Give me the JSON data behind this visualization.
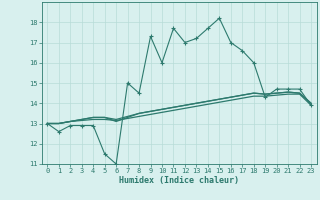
{
  "xlabel": "Humidex (Indice chaleur)",
  "x": [
    0,
    1,
    2,
    3,
    4,
    5,
    6,
    7,
    8,
    9,
    10,
    11,
    12,
    13,
    14,
    15,
    16,
    17,
    18,
    19,
    20,
    21,
    22,
    23
  ],
  "line1": [
    13.0,
    12.6,
    12.9,
    12.9,
    12.9,
    11.5,
    11.0,
    15.0,
    14.5,
    17.3,
    16.0,
    17.7,
    17.0,
    17.2,
    17.7,
    18.2,
    17.0,
    16.6,
    16.0,
    14.3,
    14.7,
    14.7,
    14.7,
    13.9
  ],
  "line2": [
    13.0,
    13.0,
    13.1,
    13.15,
    13.2,
    13.2,
    13.15,
    13.25,
    13.35,
    13.45,
    13.55,
    13.65,
    13.75,
    13.85,
    13.95,
    14.05,
    14.15,
    14.25,
    14.35,
    14.35,
    14.4,
    14.45,
    14.45,
    13.9
  ],
  "line3": [
    13.0,
    13.0,
    13.1,
    13.2,
    13.3,
    13.3,
    13.2,
    13.35,
    13.5,
    13.6,
    13.7,
    13.8,
    13.9,
    14.0,
    14.1,
    14.2,
    14.3,
    14.4,
    14.5,
    14.45,
    14.5,
    14.55,
    14.5,
    14.0
  ],
  "line4": [
    13.0,
    13.0,
    13.1,
    13.2,
    13.3,
    13.3,
    13.1,
    13.3,
    13.5,
    13.6,
    13.7,
    13.8,
    13.9,
    14.0,
    14.1,
    14.2,
    14.3,
    14.4,
    14.5,
    14.45,
    14.5,
    14.55,
    14.5,
    14.0
  ],
  "color": "#2d7a6e",
  "bg_color": "#d8f0ee",
  "grid_color": "#b8dcd8",
  "ylim": [
    11,
    19
  ],
  "xlim": [
    -0.5,
    23.5
  ],
  "yticks": [
    11,
    12,
    13,
    14,
    15,
    16,
    17,
    18
  ],
  "xticks": [
    0,
    1,
    2,
    3,
    4,
    5,
    6,
    7,
    8,
    9,
    10,
    11,
    12,
    13,
    14,
    15,
    16,
    17,
    18,
    19,
    20,
    21,
    22,
    23
  ]
}
